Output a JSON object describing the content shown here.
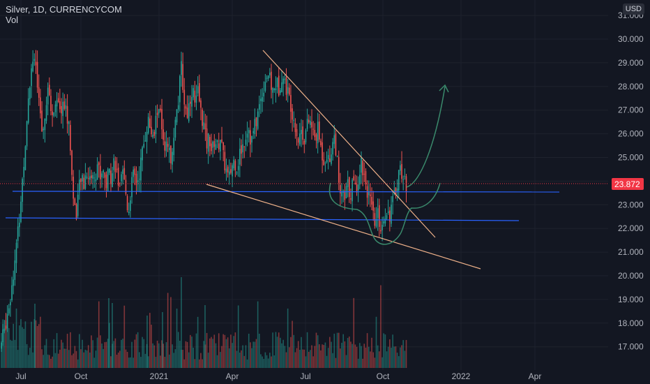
{
  "legend": {
    "symbol": "Silver, 1D, CURRENCYCOM",
    "volume_label": "Vol"
  },
  "currency": "USD",
  "last_price": "23.872",
  "colors": {
    "background": "#131722",
    "up": "#26a69a",
    "down": "#ef5350",
    "support": "#2962ff",
    "trend": "#f0b28a",
    "projection": "#3a8a6c",
    "price_line": "#f23645"
  },
  "chart_data": {
    "type": "candlestick",
    "y_ticks": [
      "31.000",
      "30.000",
      "29.000",
      "28.000",
      "27.000",
      "26.000",
      "25.000",
      "24.000",
      "23.000",
      "22.000",
      "21.000",
      "20.000",
      "19.000",
      "18.000",
      "17.000"
    ],
    "x_ticks": [
      "Jul",
      "Oct",
      "2021",
      "Apr",
      "Jul",
      "Oct",
      "2022",
      "Apr"
    ],
    "ylim": [
      16.5,
      31.5
    ],
    "support_levels": [
      23.55,
      22.35
    ],
    "current_price": 23.872,
    "path_points": [
      [
        0,
        16.9
      ],
      [
        8,
        18.0
      ],
      [
        15,
        19.2
      ],
      [
        22,
        20.8
      ],
      [
        28,
        22.5
      ],
      [
        32,
        24.0
      ],
      [
        36,
        25.5
      ],
      [
        40,
        27.5
      ],
      [
        45,
        28.8
      ],
      [
        50,
        29.6
      ],
      [
        54,
        27.8
      ],
      [
        58,
        26.5
      ],
      [
        62,
        25.8
      ],
      [
        66,
        27.2
      ],
      [
        70,
        27.9
      ],
      [
        75,
        26.6
      ],
      [
        80,
        27.7
      ],
      [
        85,
        26.8
      ],
      [
        90,
        27.3
      ],
      [
        95,
        27.0
      ],
      [
        100,
        26.0
      ],
      [
        103,
        24.2
      ],
      [
        106,
        23.1
      ],
      [
        109,
        22.6
      ],
      [
        112,
        23.4
      ],
      [
        116,
        24.1
      ],
      [
        120,
        23.8
      ],
      [
        124,
        24.5
      ],
      [
        128,
        24.0
      ],
      [
        132,
        24.4
      ],
      [
        136,
        23.9
      ],
      [
        140,
        24.8
      ],
      [
        144,
        24.2
      ],
      [
        148,
        24.6
      ],
      [
        152,
        23.8
      ],
      [
        156,
        24.5
      ],
      [
        160,
        24.1
      ],
      [
        164,
        25.0
      ],
      [
        168,
        24.2
      ],
      [
        172,
        23.6
      ],
      [
        176,
        24.3
      ],
      [
        180,
        23.6
      ],
      [
        184,
        22.6
      ],
      [
        188,
        23.8
      ],
      [
        192,
        24.3
      ],
      [
        196,
        23.9
      ],
      [
        200,
        24.4
      ],
      [
        204,
        25.2
      ],
      [
        208,
        25.9
      ],
      [
        212,
        26.6
      ],
      [
        216,
        26.2
      ],
      [
        220,
        25.6
      ],
      [
        224,
        26.7
      ],
      [
        228,
        27.3
      ],
      [
        232,
        26.1
      ],
      [
        236,
        25.0
      ],
      [
        240,
        25.6
      ],
      [
        244,
        24.9
      ],
      [
        248,
        25.7
      ],
      [
        252,
        26.6
      ],
      [
        256,
        27.5
      ],
      [
        260,
        28.8
      ],
      [
        264,
        27.4
      ],
      [
        268,
        26.8
      ],
      [
        272,
        27.4
      ],
      [
        276,
        28.0
      ],
      [
        280,
        27.1
      ],
      [
        284,
        27.8
      ],
      [
        288,
        26.9
      ],
      [
        292,
        26.4
      ],
      [
        296,
        25.5
      ],
      [
        300,
        25.9
      ],
      [
        304,
        25.2
      ],
      [
        308,
        25.8
      ],
      [
        312,
        25.4
      ],
      [
        316,
        25.9
      ],
      [
        320,
        25.0
      ],
      [
        324,
        24.5
      ],
      [
        328,
        24.0
      ],
      [
        332,
        24.6
      ],
      [
        336,
        24.9
      ],
      [
        340,
        24.6
      ],
      [
        344,
        25.2
      ],
      [
        348,
        25.5
      ],
      [
        352,
        25.9
      ],
      [
        356,
        26.4
      ],
      [
        360,
        25.6
      ],
      [
        364,
        26.2
      ],
      [
        368,
        26.6
      ],
      [
        372,
        27.2
      ],
      [
        376,
        27.7
      ],
      [
        380,
        28.3
      ],
      [
        384,
        28.6
      ],
      [
        388,
        28.1
      ],
      [
        392,
        27.7
      ],
      [
        396,
        28.2
      ],
      [
        400,
        27.9
      ],
      [
        404,
        28.5
      ],
      [
        408,
        28.2
      ],
      [
        412,
        27.8
      ],
      [
        416,
        27.4
      ],
      [
        420,
        26.8
      ],
      [
        424,
        26.3
      ],
      [
        428,
        25.7
      ],
      [
        432,
        26.2
      ],
      [
        436,
        25.8
      ],
      [
        440,
        26.3
      ],
      [
        444,
        26.6
      ],
      [
        448,
        26.1
      ],
      [
        452,
        25.8
      ],
      [
        456,
        26.2
      ],
      [
        460,
        25.4
      ],
      [
        464,
        24.9
      ],
      [
        468,
        25.2
      ],
      [
        472,
        24.7
      ],
      [
        476,
        25.6
      ],
      [
        480,
        25.9
      ],
      [
        484,
        24.6
      ],
      [
        487,
        23.1
      ],
      [
        490,
        23.6
      ],
      [
        494,
        23.1
      ],
      [
        498,
        23.9
      ],
      [
        502,
        23.4
      ],
      [
        506,
        24.0
      ],
      [
        510,
        23.6
      ],
      [
        514,
        24.2
      ],
      [
        518,
        24.8
      ],
      [
        522,
        24.3
      ],
      [
        526,
        23.7
      ],
      [
        530,
        23.2
      ],
      [
        534,
        22.6
      ],
      [
        538,
        22.1
      ],
      [
        542,
        22.6
      ],
      [
        546,
        22.0
      ],
      [
        550,
        22.4
      ],
      [
        554,
        22.9
      ],
      [
        558,
        22.5
      ],
      [
        562,
        23.0
      ],
      [
        566,
        23.4
      ],
      [
        570,
        24.1
      ],
      [
        574,
        24.6
      ],
      [
        577,
        24.3
      ],
      [
        580,
        23.9
      ],
      [
        583,
        23.87
      ]
    ]
  }
}
